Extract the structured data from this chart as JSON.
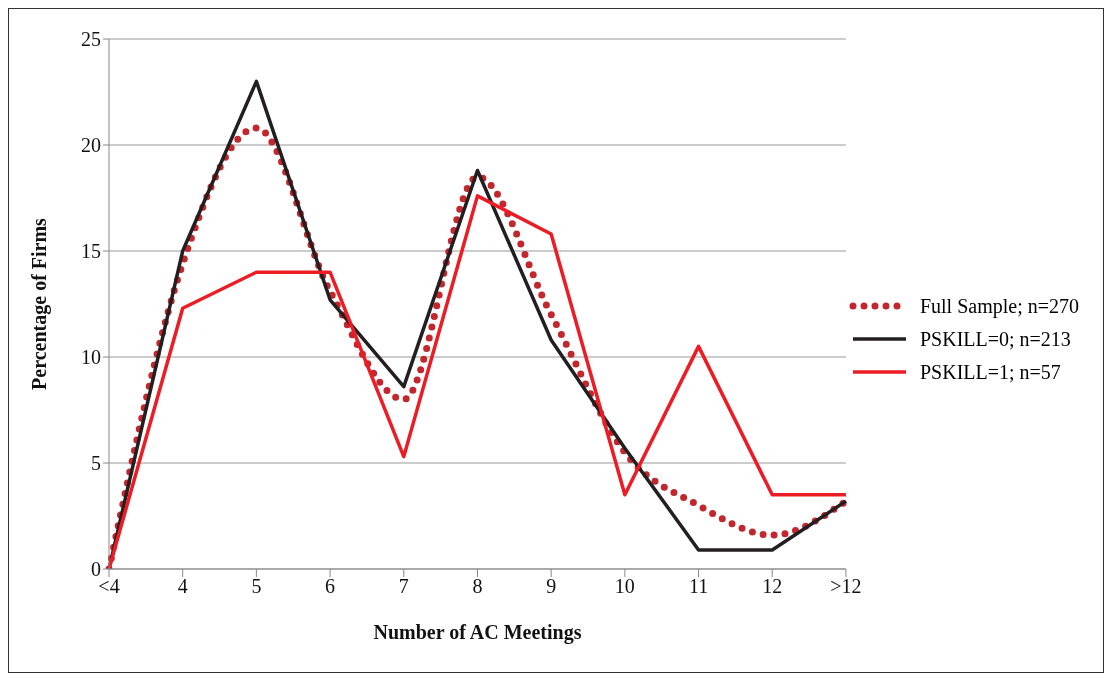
{
  "chart_data": {
    "type": "line",
    "xlabel": "Number of AC Meetings",
    "ylabel": "Percentage  of  Firms",
    "categories": [
      "<4",
      "4",
      "5",
      "6",
      "7",
      "8",
      "9",
      "10",
      "11",
      "12",
      ">12"
    ],
    "series": [
      {
        "name": "Full Sample; n=270",
        "color": "#c1272d",
        "line_style": "dotted",
        "values": [
          0,
          14.4,
          20.8,
          13.1,
          8.0,
          18.5,
          12.0,
          5.5,
          3.0,
          1.6,
          3.2
        ]
      },
      {
        "name": "PSKILL=0; n=213",
        "color": "#231f20",
        "line_style": "solid",
        "values": [
          0,
          15.0,
          23.0,
          12.7,
          8.6,
          18.8,
          10.8,
          5.7,
          0.9,
          0.9,
          3.2
        ]
      },
      {
        "name": "PSKILL=1; n=57",
        "color": "#ed1c24",
        "line_style": "solid",
        "values": [
          0,
          12.3,
          14.0,
          14.0,
          5.3,
          17.6,
          15.8,
          3.5,
          10.5,
          3.5,
          3.5
        ]
      }
    ],
    "ylim": [
      0,
      25
    ],
    "yticks": [
      0,
      5,
      10,
      15,
      20,
      25
    ],
    "grid": "y",
    "legend": "right",
    "marker": "none"
  }
}
